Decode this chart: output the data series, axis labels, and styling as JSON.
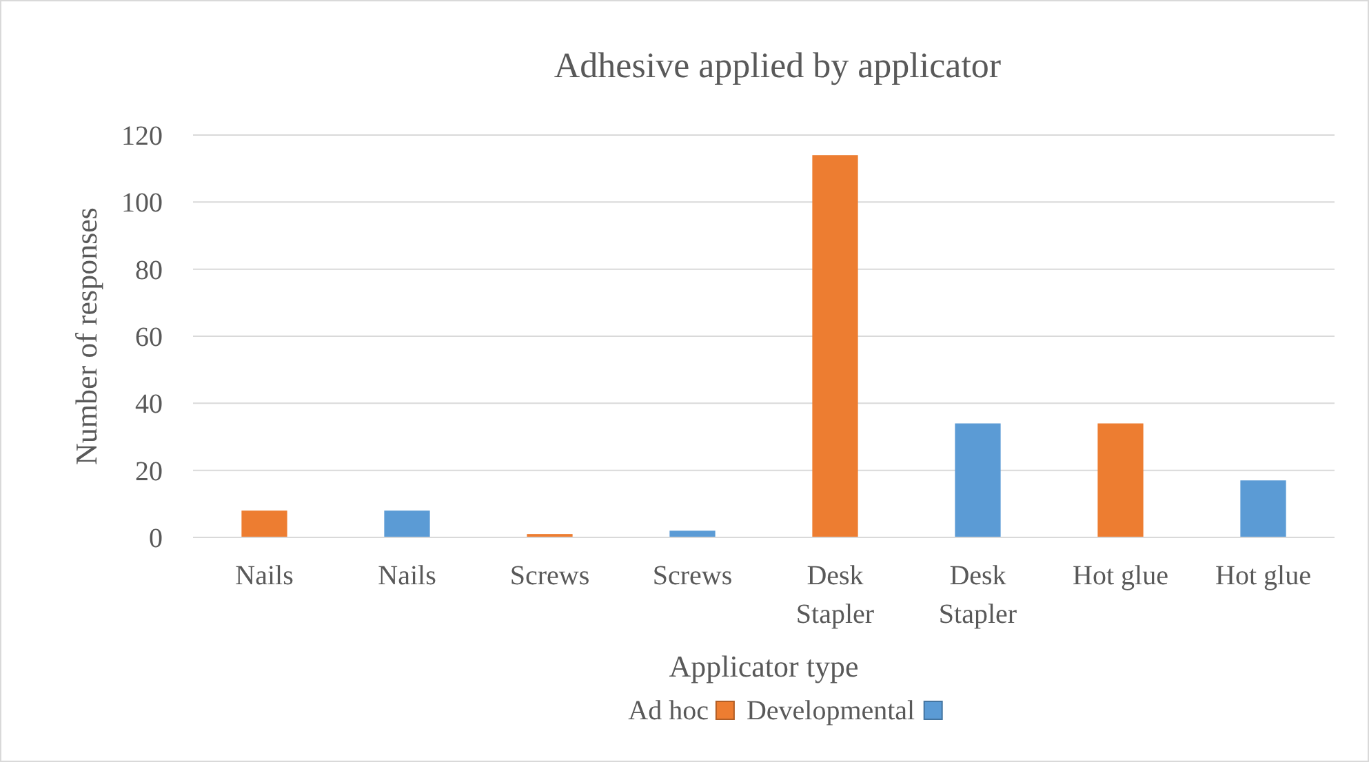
{
  "chart_data": {
    "type": "bar",
    "title": "Adhesive applied by applicator",
    "xlabel": "Applicator type",
    "ylabel": "Number of responses",
    "categories": [
      "Nails",
      "Nails",
      "Screws",
      "Screws",
      "Desk Stapler",
      "Desk Stapler",
      "Hot glue",
      "Hot glue"
    ],
    "series": [
      {
        "name": "Ad hoc",
        "color": "#ed7d31",
        "values": [
          8,
          null,
          1,
          null,
          114,
          null,
          34,
          null
        ]
      },
      {
        "name": "Developmental",
        "color": "#5b9bd5",
        "values": [
          null,
          8,
          null,
          2,
          null,
          34,
          null,
          17
        ]
      }
    ],
    "ylim": [
      0,
      120
    ],
    "yticks": [
      0,
      20,
      40,
      60,
      80,
      100,
      120
    ],
    "grid": "y",
    "legend": "bottom"
  }
}
